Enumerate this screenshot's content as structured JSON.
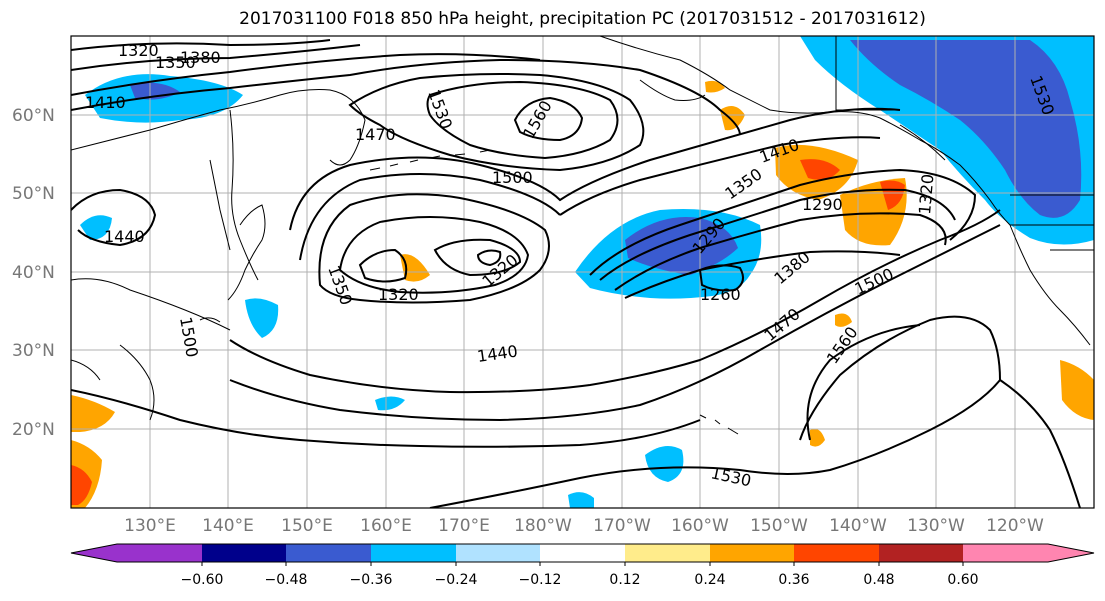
{
  "title": "2017031100 F018 850 hPa height, precipitation PC (2017031512 - 2017031612)",
  "map": {
    "lon_labels": [
      "130°E",
      "140°E",
      "150°E",
      "160°E",
      "170°E",
      "180°W",
      "170°W",
      "160°W",
      "150°W",
      "140°W",
      "130°W",
      "120°W"
    ],
    "lat_labels": [
      "60°N",
      "50°N",
      "40°N",
      "30°N",
      "20°N"
    ],
    "contour_labels": [
      "1320",
      "1350",
      "1380",
      "1410",
      "1440",
      "1470",
      "1500",
      "1530",
      "1560",
      "1290",
      "1260"
    ]
  },
  "colorbar": {
    "ticks": [
      "−0.60",
      "−0.48",
      "−0.36",
      "−0.24",
      "−0.12",
      "0.12",
      "0.24",
      "0.36",
      "0.48",
      "0.60"
    ],
    "colors": [
      "#9932cc",
      "#00008b",
      "#3a5bd0",
      "#00bfff",
      "#b0e2ff",
      "#ffffff",
      "#ffec8b",
      "#ffa500",
      "#ff4500",
      "#b22222",
      "#ff85b0"
    ]
  },
  "colors": {
    "strong_neg": "#3a5bd0",
    "neg": "#00bfff",
    "weak_neg": "#b0e2ff",
    "weak_pos": "#ffec8b",
    "pos": "#ffa500",
    "strong_pos": "#ff4500",
    "very_strong_pos": "#b22222"
  }
}
